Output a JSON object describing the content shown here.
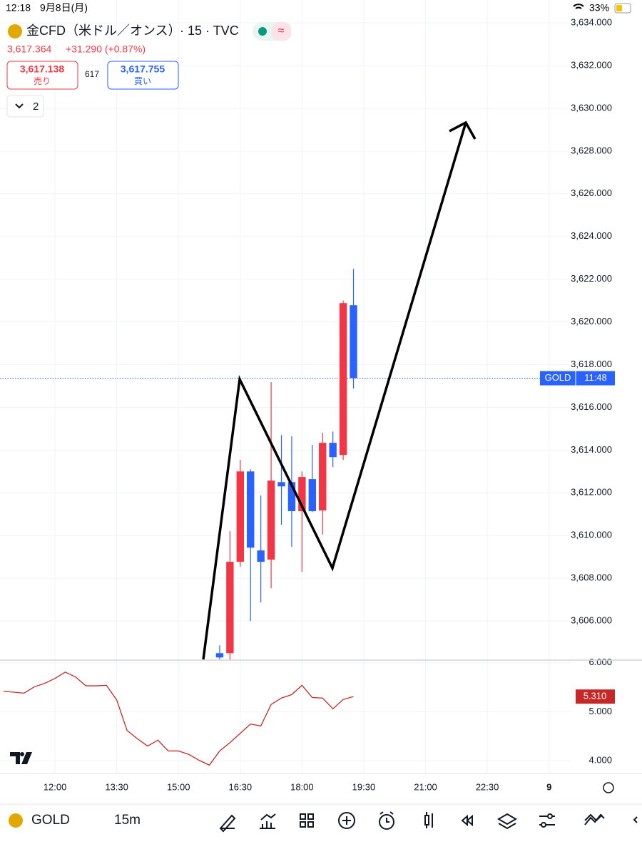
{
  "status_bar": {
    "time": "12:18",
    "date": "9月8日(月)",
    "battery": "33%"
  },
  "header": {
    "symbol": "金CFD（米ドル／オンス）",
    "interval": "· 15 · TVC",
    "price": "3,617.364",
    "change": "+31.290 (+0.87%)",
    "sell_price": "3,617.138",
    "sell_label": "売り",
    "spread": "617",
    "buy_price": "3,617.755",
    "buy_label": "買い",
    "collapse": "2"
  },
  "chart_data": [
    {
      "type": "candlestick",
      "x": [
        16,
        17,
        18,
        19,
        20,
        21,
        22,
        23,
        24,
        25,
        26,
        27,
        28,
        29
      ],
      "open": [
        3604.49,
        3604.49,
        3608.77,
        3613.0,
        3609.3,
        3608.87,
        3612.5,
        3612.5,
        3611.14,
        3612.64,
        3611.17,
        3614.34,
        3613.77,
        3620.78
      ],
      "high": [
        3604.86,
        3610.2,
        3613.54,
        3613.1,
        3611.87,
        3617.18,
        3614.7,
        3614.64,
        3613.0,
        3614.24,
        3614.81,
        3614.87,
        3621.0,
        3622.48
      ],
      "low": [
        3604.2,
        3604.2,
        3608.53,
        3606.0,
        3606.87,
        3607.53,
        3610.5,
        3609.47,
        3608.3,
        3611.1,
        3610.04,
        3613.2,
        3613.54,
        3616.88
      ],
      "close": [
        3604.29,
        3608.77,
        3613.0,
        3609.43,
        3608.77,
        3612.57,
        3612.3,
        3611.14,
        3612.74,
        3611.14,
        3614.34,
        3613.67,
        3620.88,
        3617.37
      ],
      "up_color": "#f23645",
      "down_color": "#2962ff",
      "xlim": [
        -5.34,
        50.1
      ],
      "xticks": [
        {
          "value": 0,
          "label": "12:00"
        },
        {
          "value": 6,
          "label": "13:30"
        },
        {
          "value": 12,
          "label": "15:00"
        },
        {
          "value": 18,
          "label": "16:30"
        },
        {
          "value": 24,
          "label": "18:00"
        },
        {
          "value": 30,
          "label": "19:30"
        },
        {
          "value": 36,
          "label": "21:00"
        },
        {
          "value": 42,
          "label": "22:30"
        },
        {
          "value": 48,
          "label": "9"
        }
      ],
      "ylim": [
        3604.2,
        3635.07
      ],
      "yticks": [
        {
          "value": 3606,
          "label": "3,606.000"
        },
        {
          "value": 3608,
          "label": "3,608.000"
        },
        {
          "value": 3610,
          "label": "3,610.000"
        },
        {
          "value": 3612,
          "label": "3,612.000"
        },
        {
          "value": 3614,
          "label": "3,614.000"
        },
        {
          "value": 3616,
          "label": "3,616.000"
        },
        {
          "value": 3618,
          "label": "3,618.000"
        },
        {
          "value": 3620,
          "label": "3,620.000"
        },
        {
          "value": 3622,
          "label": "3,622.000"
        },
        {
          "value": 3624,
          "label": "3,624.000"
        },
        {
          "value": 3626,
          "label": "3,626.000"
        },
        {
          "value": 3628,
          "label": "3,628.000"
        },
        {
          "value": 3630,
          "label": "3,630.000"
        },
        {
          "value": 3632,
          "label": "3,632.000"
        },
        {
          "value": 3634,
          "label": "3,634.000"
        }
      ],
      "grid": true,
      "last_price": {
        "value": 3617.364,
        "label": "GOLD",
        "countdown": "11:48",
        "color": "#2962ff"
      }
    },
    {
      "type": "line",
      "x": [
        -5,
        -4,
        -3,
        -2,
        -1,
        0,
        1,
        2,
        3,
        4,
        5,
        6,
        7,
        8,
        9,
        10,
        11,
        12,
        13,
        14,
        15,
        16,
        17,
        18,
        19,
        20,
        21,
        22,
        23,
        24,
        25,
        26,
        27,
        28,
        29
      ],
      "values": [
        5.42,
        5.4,
        5.38,
        5.51,
        5.58,
        5.68,
        5.81,
        5.71,
        5.53,
        5.53,
        5.54,
        5.24,
        4.62,
        4.45,
        4.3,
        4.42,
        4.2,
        4.2,
        4.13,
        4.01,
        3.91,
        4.2,
        4.37,
        4.56,
        4.75,
        4.71,
        5.15,
        5.28,
        5.35,
        5.54,
        5.29,
        5.28,
        5.06,
        5.25,
        5.31
      ],
      "color": "#c62828",
      "xlim": [
        -5.34,
        50.1
      ],
      "ylim": [
        3.77,
        6.04
      ],
      "yticks": [
        {
          "value": 4,
          "label": "4.000"
        },
        {
          "value": 5,
          "label": "5.000"
        },
        {
          "value": 6,
          "label": "6.000"
        }
      ],
      "grid": true,
      "last_value": {
        "value": 5.31,
        "label": "5.310"
      }
    }
  ],
  "toolbar": {
    "symbol": "GOLD",
    "interval": "15m"
  }
}
